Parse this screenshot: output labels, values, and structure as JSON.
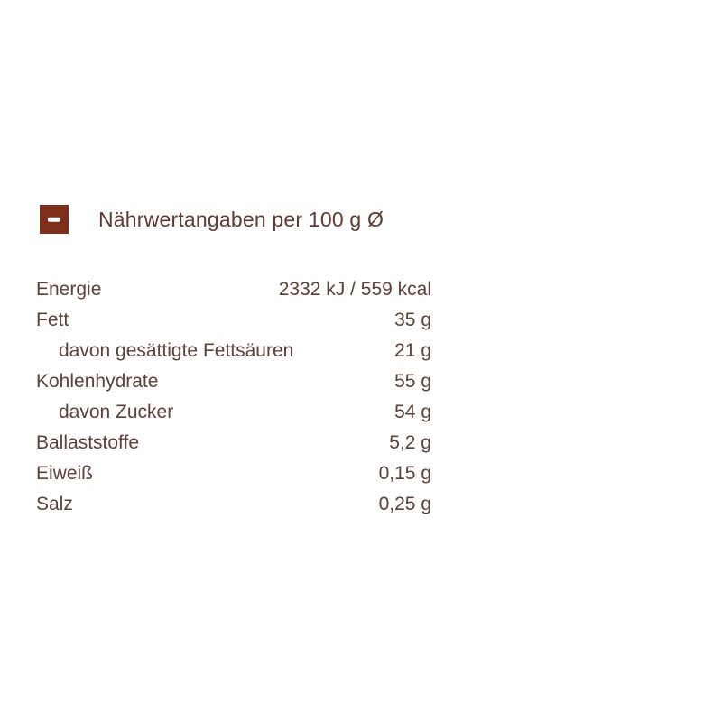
{
  "colors": {
    "accent": "#7E2F1C",
    "header_text": "#623A2E",
    "text": "#5D4037",
    "minus_icon": "#FFFFFF",
    "page_background": "#FFFFFF"
  },
  "header": {
    "collapse_icon": "minus",
    "title": "Nährwertangaben per 100 g Ø"
  },
  "nutrition_table": {
    "rows": [
      {
        "label": "Energie",
        "value": "2332 kJ / 559 kcal",
        "indent": false
      },
      {
        "label": "Fett",
        "value": "35 g",
        "indent": false
      },
      {
        "label": "davon gesättigte Fettsäuren",
        "value": "21 g",
        "indent": true
      },
      {
        "label": "Kohlenhydrate",
        "value": "55 g",
        "indent": false
      },
      {
        "label": "davon Zucker",
        "value": "54 g",
        "indent": true
      },
      {
        "label": "Ballaststoffe",
        "value": "5,2 g",
        "indent": false
      },
      {
        "label": "Eiweiß",
        "value": "0,15 g",
        "indent": false
      },
      {
        "label": "Salz",
        "value": "0,25 g",
        "indent": false
      }
    ]
  }
}
